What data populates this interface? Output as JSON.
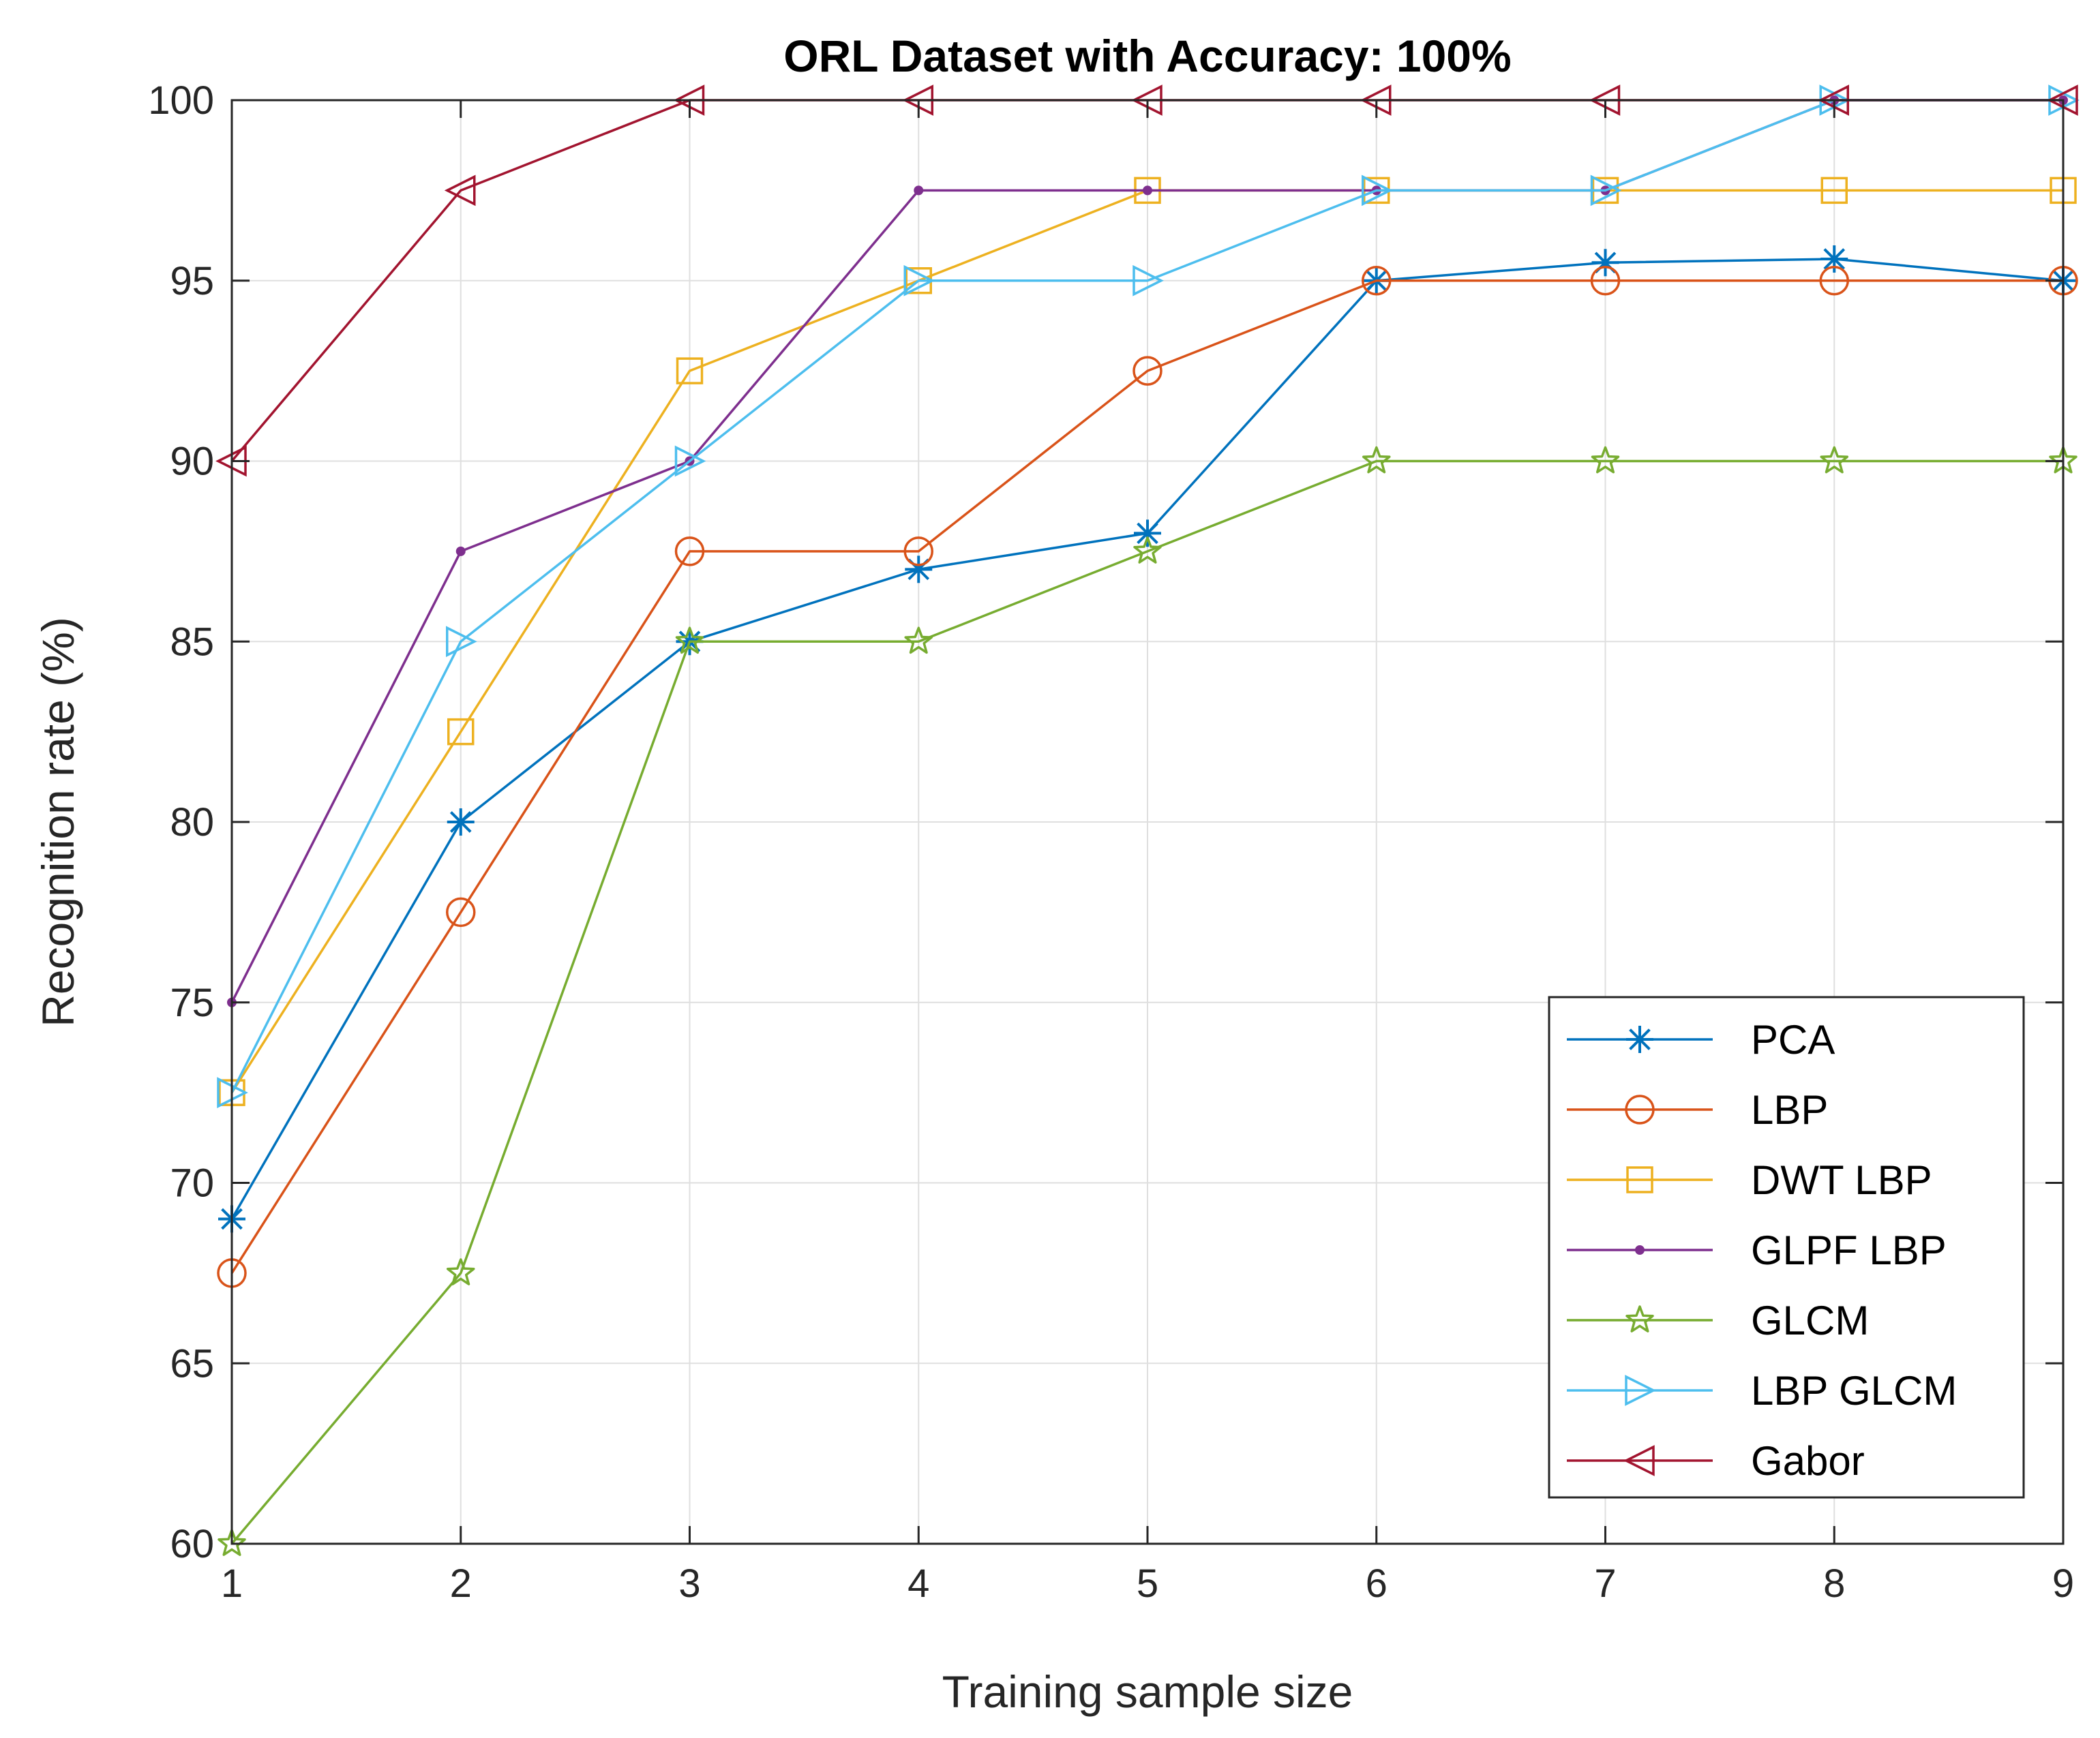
{
  "chart_data": {
    "type": "line",
    "title": "ORL Dataset with Accuracy: 100%",
    "xlabel": "Training sample size",
    "ylabel": "Recognition rate (%)",
    "x": [
      1,
      2,
      3,
      4,
      5,
      6,
      7,
      8,
      9
    ],
    "xlim": [
      1,
      9
    ],
    "ylim": [
      60,
      100
    ],
    "xticks": [
      1,
      2,
      3,
      4,
      5,
      6,
      7,
      8,
      9
    ],
    "yticks": [
      60,
      65,
      70,
      75,
      80,
      85,
      90,
      95,
      100
    ],
    "grid": true,
    "legend_position": "bottom-right",
    "series": [
      {
        "name": "PCA",
        "color": "#0072BD",
        "marker": "asterisk",
        "values": [
          69,
          80,
          85,
          87,
          88,
          95,
          95.5,
          95.6,
          95
        ]
      },
      {
        "name": "LBP",
        "color": "#D95319",
        "marker": "circle",
        "values": [
          67.5,
          77.5,
          87.5,
          87.5,
          92.5,
          95,
          95,
          95,
          95
        ]
      },
      {
        "name": "DWT LBP",
        "color": "#EDB120",
        "marker": "square",
        "values": [
          72.5,
          82.5,
          92.5,
          95,
          97.5,
          97.5,
          97.5,
          97.5,
          97.5
        ]
      },
      {
        "name": "GLPF LBP",
        "color": "#7E2F8E",
        "marker": "point",
        "values": [
          75,
          87.5,
          90,
          97.5,
          97.5,
          97.5,
          97.5,
          100,
          100
        ]
      },
      {
        "name": "GLCM",
        "color": "#77AC30",
        "marker": "pentagram",
        "values": [
          60,
          67.5,
          85,
          85,
          87.5,
          90,
          90,
          90,
          90
        ]
      },
      {
        "name": "LBP GLCM",
        "color": "#4DBEEE",
        "marker": "triangle-right",
        "values": [
          72.5,
          85,
          90,
          95,
          95,
          97.5,
          97.5,
          100,
          100
        ]
      },
      {
        "name": "Gabor",
        "color": "#A2142F",
        "marker": "triangle-left",
        "values": [
          90,
          97.5,
          100,
          100,
          100,
          100,
          100,
          100,
          100
        ]
      }
    ]
  }
}
